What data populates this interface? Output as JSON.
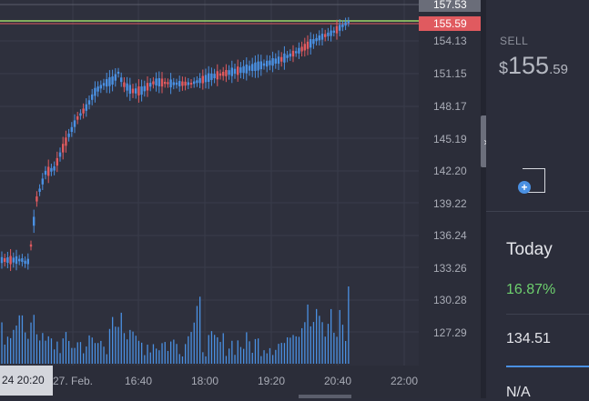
{
  "price_axis": {
    "ticks": [
      "157.53",
      "154.13",
      "151.15",
      "148.17",
      "145.19",
      "142.20",
      "139.22",
      "136.24",
      "133.26",
      "130.28",
      "127.29"
    ],
    "current_price": "155.59"
  },
  "time_axis": {
    "labels": [
      "27. Feb.",
      "16:40",
      "18:00",
      "19:20",
      "20:40",
      "22:00"
    ],
    "crosshair_label": "24 20:20"
  },
  "colors": {
    "up": "#4a90e2",
    "down": "#e05a5f",
    "price_line": "#9fd86a",
    "price_tag_bg": "#e05a5f",
    "volume": "#4a90e2"
  },
  "side_panel": {
    "sell_label": "SELL",
    "sell_currency": "$",
    "sell_big": "155",
    "sell_small": ".59",
    "today_label": "Today",
    "today_change": "16.87%",
    "today_value": "134.51",
    "next_value": "N/A"
  },
  "icons": {
    "collapse": "chevron-right-icon",
    "add_widget": "add-widget-icon"
  }
}
